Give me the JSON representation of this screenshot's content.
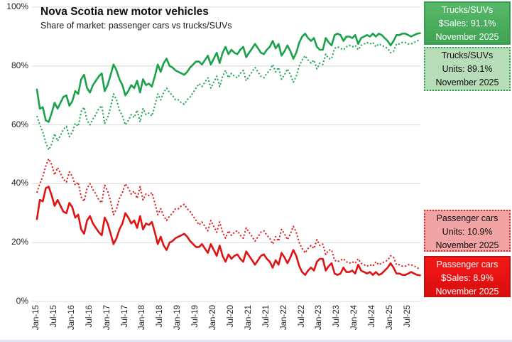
{
  "title": "Nova Scotia new motor vehicles",
  "subtitle": "Share of market: passenger cars vs trucks/SUVs",
  "y_axis": {
    "ticks": [
      "0%",
      "20%",
      "40%",
      "60%",
      "80%",
      "100%"
    ]
  },
  "x_axis": {
    "ticks": [
      "Jan-15",
      "Jul-15",
      "Jan-16",
      "Jul-16",
      "Jan-17",
      "Jul-17",
      "Jan-18",
      "Jul-18",
      "Jan-19",
      "Jul-19",
      "Jan-20",
      "Jul-20",
      "Jan-21",
      "Jul-21",
      "Jan-22",
      "Jul-22",
      "Jan-23",
      "Jul-23",
      "Jan-24",
      "Jul-24",
      "Jan-25",
      "Jul-25"
    ]
  },
  "colors": {
    "trucks_green": "#1aa24b",
    "cars_red": "#e01212",
    "gridline": "#d9d9d9",
    "legend_green_fill": "#4cb05c",
    "legend_light_green_fill": "#b6dcb8",
    "legend_pink_fill": "#f2a4a4",
    "legend_red_fill": "#e81313"
  },
  "legend": {
    "boxes": [
      {
        "lines": [
          "Trucks/SUVs",
          "$Sales: 91.1%",
          "November 2025"
        ]
      },
      {
        "lines": [
          "Trucks/SUVs",
          "Units: 89.1%",
          "November 2025"
        ]
      },
      {
        "lines": [
          "Passenger cars",
          "Units: 10.9%",
          "November 2025"
        ]
      },
      {
        "lines": [
          "Passenger cars",
          "$Sales: 8.9%",
          "November 2025"
        ]
      }
    ]
  },
  "chart_data": {
    "type": "line",
    "title": "Nova Scotia new motor vehicles",
    "subtitle": "Share of market: passenger cars vs trucks/SUVs",
    "x_start": "Jan-2015",
    "x_end": "Nov-2025",
    "frequency": "monthly",
    "ylim": [
      0,
      100
    ],
    "y_unit": "percent",
    "grid": true,
    "legend_position": "right",
    "series": [
      {
        "name": "Trucks/SUVs $Sales",
        "style": "solid",
        "color": "#1aa24b",
        "last_value": 91.1,
        "last_period": "November 2025",
        "values": [
          72,
          65.5,
          66,
          61.5,
          61,
          64,
          67.5,
          65.5,
          67.5,
          69.5,
          70,
          66.5,
          68,
          71.5,
          70.5,
          75.5,
          77,
          72.5,
          71,
          73.5,
          75,
          76.5,
          77.5,
          71.5,
          73.5,
          77,
          80.5,
          78.5,
          75.5,
          73.5,
          70,
          71.5,
          73.5,
          72.5,
          75,
          71,
          75.5,
          73.5,
          74,
          73,
          76.5,
          80.5,
          78,
          81,
          82.5,
          80,
          79.5,
          78.5,
          78,
          77.5,
          77,
          78,
          79.5,
          80.5,
          81.5,
          81.5,
          80.5,
          82,
          83.5,
          80.5,
          82.5,
          84.5,
          81,
          84.5,
          86.5,
          84,
          85.5,
          84.5,
          84,
          85.5,
          86.5,
          83,
          84.5,
          86,
          87.5,
          86,
          84.5,
          84,
          85.5,
          86.5,
          88.5,
          86,
          87.5,
          83.5,
          85,
          87,
          85,
          82.5,
          84.5,
          88,
          90,
          91,
          89.5,
          88.5,
          89.5,
          86.5,
          85.5,
          85.5,
          89.5,
          88,
          87,
          90.5,
          91,
          90.5,
          88.5,
          90,
          90,
          89.5,
          90.5,
          87.5,
          89.5,
          90,
          90.5,
          90,
          91,
          90,
          91,
          90.5,
          89.5,
          88.5,
          87,
          88.5,
          90.5,
          90.5,
          91,
          91,
          90.5,
          90,
          90.5,
          91,
          91.1
        ]
      },
      {
        "name": "Trucks/SUVs Units",
        "style": "dotted",
        "color": "#1aa24b",
        "last_value": 89.1,
        "last_period": "November 2025",
        "values": [
          63,
          60,
          57.5,
          54,
          51.5,
          53.5,
          57,
          54.5,
          56.5,
          58.5,
          59.5,
          56,
          57.5,
          60.5,
          59.5,
          64.5,
          66,
          61.5,
          60,
          62,
          63.5,
          65.5,
          66.5,
          60.5,
          62.5,
          66,
          70.5,
          68.5,
          65,
          63,
          60,
          61.5,
          63.5,
          62.5,
          65,
          61,
          65.5,
          63.5,
          64,
          63,
          66.5,
          70.5,
          68.5,
          71,
          72.5,
          71,
          70,
          68.5,
          68.5,
          67.5,
          67,
          68.5,
          69.5,
          71,
          72.5,
          74,
          73,
          74.5,
          76,
          72.5,
          74.5,
          76.5,
          73,
          76.5,
          78.5,
          76,
          77.5,
          76.5,
          76,
          77.5,
          78.5,
          75,
          76.5,
          78,
          79.5,
          78,
          76.5,
          76,
          77.5,
          78.5,
          80.5,
          78,
          79.5,
          75.5,
          77,
          79,
          77,
          74.5,
          76.5,
          80,
          82,
          83.5,
          82,
          81,
          82,
          79,
          81,
          80.5,
          84,
          82.5,
          82.5,
          86,
          86.5,
          86,
          85.5,
          86.5,
          87,
          86.5,
          87,
          85.5,
          87,
          87.5,
          88,
          87.5,
          88,
          86.5,
          87.5,
          87,
          86.5,
          86,
          84.5,
          85,
          87.5,
          87.5,
          88,
          88,
          87.5,
          87.5,
          88,
          88.5,
          89.1
        ]
      },
      {
        "name": "Passenger cars Units",
        "style": "dotted",
        "color": "#e01212",
        "last_value": 10.9,
        "last_period": "November 2025",
        "values": [
          37,
          40,
          42.5,
          46,
          48.5,
          46.5,
          43,
          45.5,
          43.5,
          41.5,
          40.5,
          44,
          42.5,
          39.5,
          40.5,
          35.5,
          34,
          38.5,
          40,
          38,
          36.5,
          34.5,
          33.5,
          39.5,
          37.5,
          34,
          29.5,
          31.5,
          35,
          37,
          40,
          38.5,
          36.5,
          37.5,
          35,
          39,
          34.5,
          36.5,
          36,
          37,
          33.5,
          29.5,
          31.5,
          29,
          27.5,
          29,
          30,
          31.5,
          31.5,
          32.5,
          33,
          31.5,
          30.5,
          29,
          27.5,
          26,
          27,
          25.5,
          24,
          27.5,
          25.5,
          23.5,
          27,
          23.5,
          21.5,
          24,
          22.5,
          23.5,
          24,
          22.5,
          21.5,
          25,
          23.5,
          22,
          20.5,
          22,
          23.5,
          24,
          22.5,
          21.5,
          19.5,
          22,
          20.5,
          24.5,
          23,
          21,
          23,
          25.5,
          23.5,
          20,
          18,
          16.5,
          18,
          19,
          18,
          21,
          19,
          19.5,
          16,
          17.5,
          17.5,
          14,
          13.5,
          14,
          14.5,
          13.5,
          13,
          13.5,
          13,
          14.5,
          13,
          12.5,
          12,
          12.5,
          12,
          13.5,
          12.5,
          13,
          13.5,
          14,
          15.5,
          15,
          12.5,
          12.5,
          12,
          12,
          12.5,
          12.5,
          12,
          11.5,
          10.9
        ]
      },
      {
        "name": "Passenger cars $Sales",
        "style": "solid",
        "color": "#e01212",
        "last_value": 8.9,
        "last_period": "November 2025",
        "values": [
          28,
          34.5,
          34,
          38.5,
          39,
          36,
          32.5,
          34.5,
          32.5,
          30.5,
          30,
          33.5,
          32,
          28.5,
          29.5,
          24.5,
          23,
          27.5,
          29,
          26.5,
          25,
          23.5,
          22.5,
          28.5,
          26.5,
          23,
          19.5,
          21.5,
          24.5,
          26.5,
          30,
          28.5,
          26.5,
          27.5,
          25,
          29,
          24.5,
          26.5,
          26,
          27,
          23.5,
          19.5,
          22,
          19,
          17.5,
          20,
          20.5,
          21.5,
          22,
          22.5,
          23,
          22,
          20.5,
          19.5,
          18.5,
          18.5,
          19.5,
          18,
          16.5,
          19.5,
          17.5,
          15.5,
          19,
          15.5,
          13.5,
          16,
          14.5,
          15.5,
          16,
          14.5,
          13.5,
          17,
          15.5,
          14,
          12.5,
          14,
          15.5,
          16,
          14.5,
          13.5,
          11.5,
          14,
          12.5,
          16.5,
          15,
          13,
          15,
          17.5,
          15.5,
          12,
          10,
          9,
          10.5,
          11.5,
          10.5,
          13.5,
          14.5,
          14.5,
          10.5,
          12,
          13,
          9.5,
          9,
          9.5,
          11.5,
          10,
          10,
          10.5,
          9.5,
          12.5,
          10.5,
          10,
          9.5,
          10,
          9,
          10,
          9,
          9.5,
          10.5,
          11.5,
          13,
          11.5,
          9.5,
          9.5,
          9,
          9,
          9.5,
          10,
          9.5,
          9,
          8.9
        ]
      }
    ]
  }
}
